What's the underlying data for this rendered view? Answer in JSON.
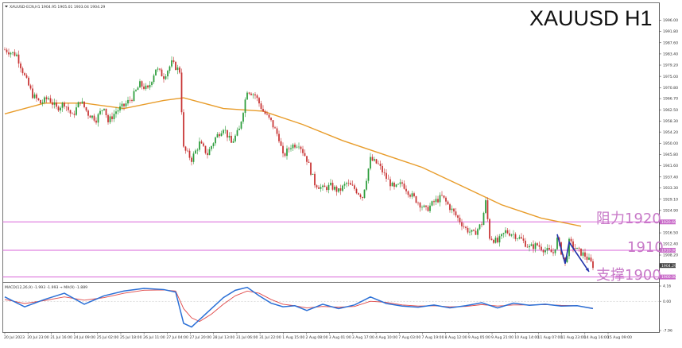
{
  "header": {
    "symbol_line": "XAUUSD-ECN,H1  1904.95 1905.01 1903.04 1904.29",
    "title": "XAUUSD H1"
  },
  "chart_data": {
    "type": "candlestick",
    "symbol": "XAUUSD-ECN",
    "timeframe": "H1",
    "price_axis": {
      "range": [
        1899.0,
        2000.0
      ],
      "ticks": [
        "1996.00",
        "1991.80",
        "1987.60",
        "1983.40",
        "1979.20",
        "1975.00",
        "1970.80",
        "1966.70",
        "1962.50",
        "1958.30",
        "1954.20",
        "1950.00",
        "1945.80",
        "1941.60",
        "1937.40",
        "1933.30",
        "1929.10",
        "1924.90",
        "1916.50",
        "1912.40",
        "1908.20"
      ],
      "level_tags": [
        "1920.60",
        "1910.00",
        "1904.29",
        "1900.00"
      ]
    },
    "time_axis": {
      "labels": [
        "20 Jul 2023",
        "20 Jul 23:00",
        "21 Jul 16:00",
        "24 Jul 09:00",
        "25 Jul 02:00",
        "25 Jul 18:00",
        "26 Jul 11:00",
        "27 Jul 04:00",
        "27 Jul 20:00",
        "28 Jul 13:00",
        "31 Jul 06:00",
        "31 Jul 22:00",
        "1 Aug 15:00",
        "2 Aug 08:00",
        "3 Aug 01:00",
        "3 Aug 17:00",
        "4 Aug 10:00",
        "7 Aug 03:00",
        "7 Aug 19:00",
        "8 Aug 12:00",
        "9 Aug 05:00",
        "9 Aug 21:00",
        "10 Aug 14:00",
        "11 Aug 07:00",
        "11 Aug 23:00",
        "14 Aug 16:00",
        "15 Aug 09:00"
      ]
    },
    "close_path": [
      [
        0,
        1985
      ],
      [
        3,
        1983
      ],
      [
        5,
        1975
      ],
      [
        7,
        1968
      ],
      [
        9,
        1965
      ],
      [
        11,
        1967
      ],
      [
        13,
        1963
      ],
      [
        15,
        1965
      ],
      [
        17,
        1960
      ],
      [
        19,
        1966
      ],
      [
        21,
        1961
      ],
      [
        23,
        1959
      ],
      [
        25,
        1964
      ],
      [
        26,
        1958
      ],
      [
        28,
        1962
      ],
      [
        30,
        1964
      ],
      [
        32,
        1967
      ],
      [
        34,
        1972
      ],
      [
        36,
        1970
      ],
      [
        38,
        1978
      ],
      [
        40,
        1975
      ],
      [
        42,
        1980
      ],
      [
        44,
        1977
      ],
      [
        45,
        1948
      ],
      [
        47,
        1944
      ],
      [
        49,
        1950
      ],
      [
        51,
        1946
      ],
      [
        53,
        1952
      ],
      [
        55,
        1956
      ],
      [
        57,
        1950
      ],
      [
        59,
        1955
      ],
      [
        61,
        1970
      ],
      [
        63,
        1968
      ],
      [
        65,
        1962
      ],
      [
        67,
        1958
      ],
      [
        69,
        1952
      ],
      [
        70,
        1945
      ],
      [
        72,
        1949
      ],
      [
        74,
        1950
      ],
      [
        76,
        1944
      ],
      [
        78,
        1935
      ],
      [
        80,
        1933
      ],
      [
        82,
        1934
      ],
      [
        84,
        1932
      ],
      [
        86,
        1935
      ],
      [
        88,
        1933
      ],
      [
        90,
        1930
      ],
      [
        92,
        1944
      ],
      [
        94,
        1942
      ],
      [
        96,
        1937
      ],
      [
        98,
        1933
      ],
      [
        100,
        1935
      ],
      [
        102,
        1931
      ],
      [
        104,
        1928
      ],
      [
        106,
        1925
      ],
      [
        108,
        1928
      ],
      [
        110,
        1930
      ],
      [
        112,
        1926
      ],
      [
        114,
        1922
      ],
      [
        116,
        1918
      ],
      [
        118,
        1916
      ],
      [
        120,
        1920
      ],
      [
        121,
        1928
      ],
      [
        122,
        1915
      ],
      [
        124,
        1913
      ],
      [
        126,
        1917
      ],
      [
        128,
        1916
      ],
      [
        130,
        1914
      ],
      [
        132,
        1911
      ],
      [
        134,
        1912
      ],
      [
        136,
        1910
      ],
      [
        138,
        1909
      ],
      [
        139,
        1914
      ],
      [
        141,
        1905
      ],
      [
        142,
        1913
      ],
      [
        144,
        1910
      ],
      [
        146,
        1908
      ],
      [
        148,
        1904.3
      ]
    ],
    "sma_path": [
      [
        0,
        1961
      ],
      [
        10,
        1965
      ],
      [
        20,
        1965
      ],
      [
        30,
        1963
      ],
      [
        40,
        1966
      ],
      [
        45,
        1967
      ],
      [
        55,
        1963
      ],
      [
        65,
        1962
      ],
      [
        75,
        1957
      ],
      [
        85,
        1951
      ],
      [
        95,
        1946
      ],
      [
        105,
        1941
      ],
      [
        115,
        1934
      ],
      [
        125,
        1927
      ],
      [
        135,
        1922
      ],
      [
        145,
        1919
      ]
    ],
    "horizontal_levels": [
      {
        "price": 1920.6,
        "color": "#d966d9"
      },
      {
        "price": 1910.0,
        "color": "#d966d9"
      },
      {
        "price": 1900.0,
        "color": "#d966d9"
      }
    ],
    "annotations": [
      {
        "text": "阻力1920",
        "price": 1920.6
      },
      {
        "text": "1910",
        "price": 1910.0
      },
      {
        "text": "支撑1900",
        "price": 1900.0
      }
    ],
    "zigzag_blue": [
      [
        139,
        1916
      ],
      [
        141,
        1905
      ],
      [
        142,
        1913
      ],
      [
        147,
        1902
      ]
    ],
    "zigzag_color": "#2233aa",
    "macd": {
      "label": "MACD(12,26,9) -1.993  -1.993  → MA(9) -1.889",
      "ticks": [
        "4.16",
        "0.00",
        "-7.96"
      ],
      "range": [
        -7.96,
        4.16
      ],
      "macd_path": [
        [
          0,
          1.2
        ],
        [
          5,
          -1.5
        ],
        [
          10,
          0.5
        ],
        [
          15,
          2.2
        ],
        [
          20,
          -0.8
        ],
        [
          25,
          1.5
        ],
        [
          30,
          2.8
        ],
        [
          35,
          3.5
        ],
        [
          40,
          3.2
        ],
        [
          43,
          2.5
        ],
        [
          45,
          -6
        ],
        [
          47,
          -7
        ],
        [
          49,
          -5
        ],
        [
          52,
          -2
        ],
        [
          55,
          1
        ],
        [
          58,
          3
        ],
        [
          61,
          3.8
        ],
        [
          64,
          1.5
        ],
        [
          67,
          -0.5
        ],
        [
          70,
          -1.5
        ],
        [
          73,
          -1.2
        ],
        [
          76,
          -2.5
        ],
        [
          80,
          -0.8
        ],
        [
          84,
          -2
        ],
        [
          88,
          -1
        ],
        [
          92,
          1.2
        ],
        [
          96,
          -0.6
        ],
        [
          100,
          -1.3
        ],
        [
          104,
          -1.6
        ],
        [
          108,
          -1
        ],
        [
          112,
          -1.8
        ],
        [
          116,
          -1.2
        ],
        [
          120,
          -0.4
        ],
        [
          124,
          -1.8
        ],
        [
          128,
          -0.5
        ],
        [
          132,
          -1.1
        ],
        [
          136,
          -0.8
        ],
        [
          140,
          -1.3
        ],
        [
          144,
          -1.2
        ],
        [
          148,
          -1.99
        ]
      ],
      "signal_path": [
        [
          0,
          0.5
        ],
        [
          5,
          -0.6
        ],
        [
          10,
          0.2
        ],
        [
          15,
          1.2
        ],
        [
          20,
          0.3
        ],
        [
          25,
          1.0
        ],
        [
          30,
          2.2
        ],
        [
          35,
          3.0
        ],
        [
          40,
          3.1
        ],
        [
          43,
          2.8
        ],
        [
          45,
          -2
        ],
        [
          47,
          -4.5
        ],
        [
          49,
          -5.5
        ],
        [
          52,
          -3.5
        ],
        [
          55,
          -0.8
        ],
        [
          58,
          1.5
        ],
        [
          61,
          2.8
        ],
        [
          64,
          2.2
        ],
        [
          67,
          0.5
        ],
        [
          70,
          -0.8
        ],
        [
          73,
          -1.2
        ],
        [
          76,
          -1.8
        ],
        [
          80,
          -1.4
        ],
        [
          84,
          -1.6
        ],
        [
          88,
          -1.4
        ],
        [
          92,
          0
        ],
        [
          96,
          -0.3
        ],
        [
          100,
          -1.0
        ],
        [
          104,
          -1.3
        ],
        [
          108,
          -1.2
        ],
        [
          112,
          -1.5
        ],
        [
          116,
          -1.4
        ],
        [
          120,
          -0.9
        ],
        [
          124,
          -1.3
        ],
        [
          128,
          -1.0
        ],
        [
          132,
          -1.0
        ],
        [
          136,
          -0.9
        ],
        [
          140,
          -1.1
        ],
        [
          144,
          -1.2
        ],
        [
          148,
          -1.89
        ]
      ],
      "macd_color": "#2a6fd6",
      "signal_color": "#e04848"
    },
    "colors": {
      "bull": "#2a9c3a",
      "bear": "#c83232",
      "sma": "#e89c2a",
      "level_tag_bg": "#c86ac8"
    }
  }
}
